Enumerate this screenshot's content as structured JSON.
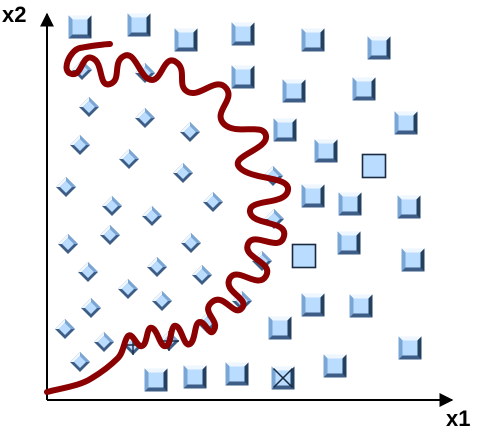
{
  "axes": {
    "x_label": "x1",
    "y_label": "x2"
  },
  "colors": {
    "marker_fill": "#b9dcff",
    "marker_dark": "#3d5d86",
    "marker_mid": "#7aa6d6",
    "marker_light": "#eef6ff",
    "boundary": "#8b0000",
    "axis": "#000000"
  },
  "squares": [
    [
      80,
      27
    ],
    [
      139,
      25
    ],
    [
      186,
      40
    ],
    [
      243,
      34
    ],
    [
      313,
      40
    ],
    [
      379,
      48
    ],
    [
      243,
      77
    ],
    [
      294,
      91
    ],
    [
      364,
      89
    ],
    [
      285,
      130
    ],
    [
      326,
      151
    ],
    [
      406,
      123
    ],
    [
      374,
      166
    ],
    [
      313,
      196
    ],
    [
      350,
      204
    ],
    [
      409,
      207
    ],
    [
      304,
      256
    ],
    [
      349,
      243
    ],
    [
      413,
      260
    ],
    [
      313,
      305
    ],
    [
      361,
      306
    ],
    [
      280,
      328
    ],
    [
      410,
      348
    ],
    [
      335,
      366
    ],
    [
      156,
      380
    ],
    [
      195,
      377
    ],
    [
      237,
      374
    ]
  ],
  "squares_highlighted": [
    [
      374,
      166
    ],
    [
      304,
      256
    ]
  ],
  "squares_crossed": [
    [
      283,
      378
    ]
  ],
  "diamonds": [
    [
      82,
      70
    ],
    [
      145,
      73
    ],
    [
      89,
      107
    ],
    [
      145,
      118
    ],
    [
      190,
      132
    ],
    [
      80,
      145
    ],
    [
      129,
      159
    ],
    [
      183,
      173
    ],
    [
      273,
      176
    ],
    [
      66,
      187
    ],
    [
      112,
      206
    ],
    [
      152,
      216
    ],
    [
      213,
      202
    ],
    [
      274,
      219
    ],
    [
      68,
      244
    ],
    [
      110,
      235
    ],
    [
      191,
      243
    ],
    [
      262,
      261
    ],
    [
      88,
      272
    ],
    [
      157,
      267
    ],
    [
      202,
      275
    ],
    [
      128,
      289
    ],
    [
      91,
      308
    ],
    [
      162,
      301
    ],
    [
      242,
      301
    ],
    [
      207,
      323
    ],
    [
      65,
      329
    ],
    [
      104,
      342
    ],
    [
      80,
      362
    ]
  ],
  "diamonds_crossed": [
    [
      133,
      345
    ],
    [
      169,
      341
    ]
  ]
}
